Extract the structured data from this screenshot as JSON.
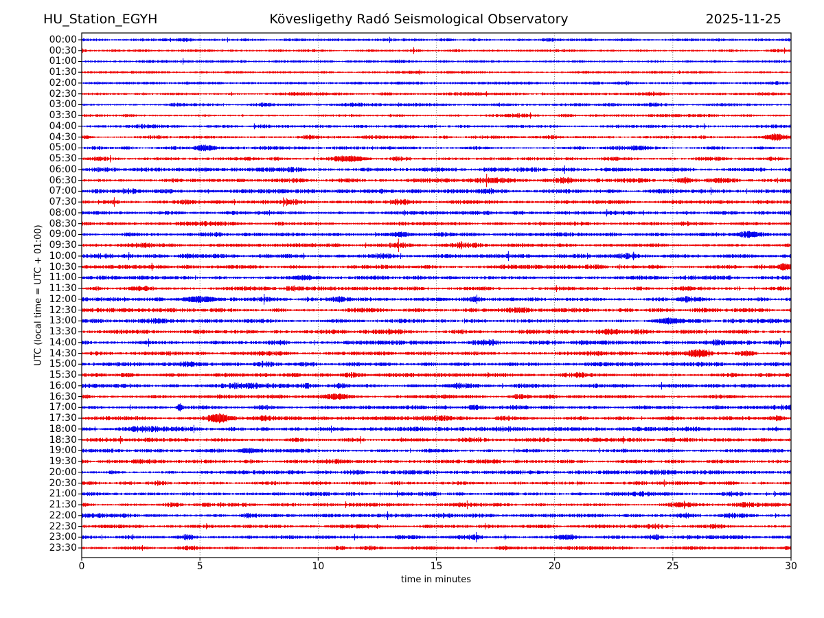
{
  "header": {
    "station": "HU_Station_EGYH",
    "title": "Kövesligethy Radó Seismological Observatory",
    "date": "2025-11-25"
  },
  "axes": {
    "xlabel": "time in minutes",
    "ylabel": "UTC (local time = UTC + 01:00)"
  },
  "chart_data": {
    "type": "line",
    "subtype": "helicorder-day-plot",
    "station": "HU_Station_EGYH",
    "title": "Kövesligethy Radó Seismological Observatory",
    "date": "2025-11-25",
    "xlabel": "time in minutes",
    "ylabel": "UTC (local time = UTC + 01:00)",
    "xlim": [
      0,
      30
    ],
    "x_ticks": [
      0,
      5,
      10,
      15,
      20,
      25,
      30
    ],
    "x_gridlines": [
      5,
      10,
      15,
      20,
      25
    ],
    "grid_style": "dotted",
    "minutes_per_line": 30,
    "legend": "none",
    "colors": {
      "blue": "#0000ee",
      "red": "#ee0000",
      "grid": "#444444",
      "frame": "#000000"
    },
    "traces": [
      {
        "time": "00:00",
        "color": "blue",
        "amp": 1.7,
        "bursts": []
      },
      {
        "time": "00:30",
        "color": "red",
        "amp": 1.6,
        "bursts": []
      },
      {
        "time": "01:00",
        "color": "blue",
        "amp": 1.5,
        "bursts": []
      },
      {
        "time": "01:30",
        "color": "red",
        "amp": 1.5,
        "bursts": []
      },
      {
        "time": "02:00",
        "color": "blue",
        "amp": 1.6,
        "bursts": []
      },
      {
        "time": "02:30",
        "color": "red",
        "amp": 1.7,
        "bursts": []
      },
      {
        "time": "03:00",
        "color": "blue",
        "amp": 1.6,
        "bursts": []
      },
      {
        "time": "03:30",
        "color": "red",
        "amp": 1.6,
        "bursts": []
      },
      {
        "time": "04:00",
        "color": "blue",
        "amp": 1.7,
        "bursts": []
      },
      {
        "time": "04:30",
        "color": "red",
        "amp": 1.7,
        "bursts": [
          [
            29.3,
            4,
            0.25
          ]
        ]
      },
      {
        "time": "05:00",
        "color": "blue",
        "amp": 1.8,
        "bursts": [
          [
            5.2,
            4,
            0.3
          ]
        ]
      },
      {
        "time": "05:30",
        "color": "red",
        "amp": 1.8,
        "bursts": [
          [
            11.5,
            3.5,
            0.4
          ]
        ]
      },
      {
        "time": "06:00",
        "color": "blue",
        "amp": 2.2,
        "bursts": []
      },
      {
        "time": "06:30",
        "color": "red",
        "amp": 2.4,
        "bursts": []
      },
      {
        "time": "07:00",
        "color": "blue",
        "amp": 2.4,
        "bursts": []
      },
      {
        "time": "07:30",
        "color": "red",
        "amp": 2.3,
        "bursts": []
      },
      {
        "time": "08:00",
        "color": "blue",
        "amp": 2.2,
        "bursts": []
      },
      {
        "time": "08:30",
        "color": "red",
        "amp": 2.2,
        "bursts": []
      },
      {
        "time": "09:00",
        "color": "blue",
        "amp": 2.2,
        "bursts": [
          [
            13.5,
            2.5,
            0.3
          ],
          [
            28.2,
            3,
            0.35
          ]
        ]
      },
      {
        "time": "09:30",
        "color": "red",
        "amp": 2.1,
        "bursts": []
      },
      {
        "time": "10:00",
        "color": "blue",
        "amp": 2.3,
        "bursts": []
      },
      {
        "time": "10:30",
        "color": "red",
        "amp": 2.2,
        "bursts": [
          [
            29.7,
            3,
            0.2
          ]
        ]
      },
      {
        "time": "11:00",
        "color": "blue",
        "amp": 2.2,
        "bursts": [
          [
            9.3,
            2,
            0.4
          ]
        ]
      },
      {
        "time": "11:30",
        "color": "red",
        "amp": 2.1,
        "bursts": []
      },
      {
        "time": "12:00",
        "color": "blue",
        "amp": 2.2,
        "bursts": [
          [
            5.0,
            3.5,
            0.5
          ]
        ]
      },
      {
        "time": "12:30",
        "color": "red",
        "amp": 2.2,
        "bursts": []
      },
      {
        "time": "13:00",
        "color": "blue",
        "amp": 2.2,
        "bursts": [
          [
            24.8,
            3,
            0.4
          ]
        ]
      },
      {
        "time": "13:30",
        "color": "red",
        "amp": 2.4,
        "bursts": []
      },
      {
        "time": "14:00",
        "color": "blue",
        "amp": 2.4,
        "bursts": []
      },
      {
        "time": "14:30",
        "color": "red",
        "amp": 2.3,
        "bursts": [
          [
            26.0,
            3.5,
            0.3
          ]
        ]
      },
      {
        "time": "15:00",
        "color": "blue",
        "amp": 2.3,
        "bursts": []
      },
      {
        "time": "15:30",
        "color": "red",
        "amp": 2.2,
        "bursts": []
      },
      {
        "time": "16:00",
        "color": "blue",
        "amp": 2.2,
        "bursts": []
      },
      {
        "time": "16:30",
        "color": "red",
        "amp": 2.2,
        "bursts": [
          [
            10.8,
            2.5,
            0.4
          ]
        ]
      },
      {
        "time": "17:00",
        "color": "blue",
        "amp": 2.1,
        "bursts": [
          [
            4.15,
            4.5,
            0.08
          ]
        ]
      },
      {
        "time": "17:30",
        "color": "red",
        "amp": 2.2,
        "bursts": [
          [
            5.8,
            3,
            0.35
          ]
        ]
      },
      {
        "time": "18:00",
        "color": "blue",
        "amp": 2.4,
        "bursts": []
      },
      {
        "time": "18:30",
        "color": "red",
        "amp": 2.2,
        "bursts": []
      },
      {
        "time": "19:00",
        "color": "blue",
        "amp": 2.1,
        "bursts": [
          [
            7.0,
            2.5,
            0.3
          ]
        ]
      },
      {
        "time": "19:30",
        "color": "red",
        "amp": 2.0,
        "bursts": []
      },
      {
        "time": "20:00",
        "color": "blue",
        "amp": 2.1,
        "bursts": []
      },
      {
        "time": "20:30",
        "color": "red",
        "amp": 2.0,
        "bursts": []
      },
      {
        "time": "21:00",
        "color": "blue",
        "amp": 2.0,
        "bursts": []
      },
      {
        "time": "21:30",
        "color": "red",
        "amp": 2.0,
        "bursts": []
      },
      {
        "time": "22:00",
        "color": "blue",
        "amp": 2.2,
        "bursts": []
      },
      {
        "time": "22:30",
        "color": "red",
        "amp": 2.0,
        "bursts": []
      },
      {
        "time": "23:00",
        "color": "blue",
        "amp": 2.1,
        "bursts": [
          [
            20.5,
            2.5,
            0.3
          ]
        ]
      },
      {
        "time": "23:30",
        "color": "red",
        "amp": 1.9,
        "bursts": []
      }
    ]
  }
}
